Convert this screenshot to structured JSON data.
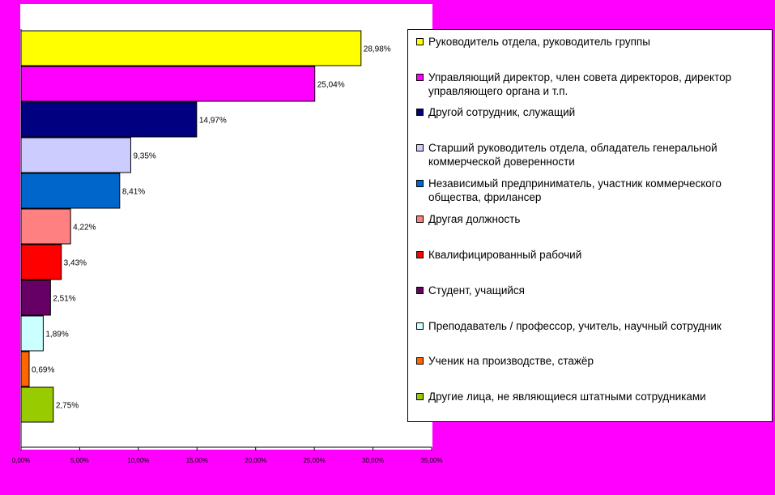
{
  "chart_data": {
    "type": "bar",
    "orientation": "horizontal",
    "categories": [
      "Руководитель отдела, руководитель группы",
      "Управляющий директор, член совета директоров, директор управляющего органа и т.п.",
      "Другой сотрудник, служащий",
      "Старший руководитель отдела, обладатель генеральной коммерческой доверенности",
      "Независимый предприниматель, участник коммерческого общества, фрилансер",
      "Другая должность",
      "Квалифицированный рабочий",
      "Студент, учащийся",
      "Преподаватель / профессор, учитель, научный сотрудник",
      "Ученик на производстве, стажёр",
      "Другие лица, не являющиеся штатными сотрудниками"
    ],
    "values": [
      28.98,
      25.04,
      14.97,
      9.35,
      8.41,
      4.22,
      3.43,
      2.51,
      1.89,
      0.69,
      2.75
    ],
    "data_labels": [
      "28,98%",
      "25,04%",
      "14,97%",
      "9,35%",
      "8,41%",
      "4,22%",
      "3,43%",
      "2,51%",
      "1,89%",
      "0,69%",
      "2,75%"
    ],
    "colors": [
      "#ffff00",
      "#ff00ff",
      "#000080",
      "#ccccff",
      "#0066cc",
      "#ff8080",
      "#ff0000",
      "#660066",
      "#ccffff",
      "#ff6600",
      "#99cc00"
    ],
    "xlim": [
      0,
      35
    ],
    "xticks": [
      0,
      5,
      10,
      15,
      20,
      25,
      30,
      35
    ],
    "xtick_labels": [
      "0,00%",
      "5,00%",
      "10,00%",
      "15,00%",
      "20,00%",
      "25,00%",
      "30,00%",
      "35,00%"
    ],
    "grid": false,
    "legend_position": "right",
    "title": "",
    "xlabel": "",
    "ylabel": ""
  }
}
